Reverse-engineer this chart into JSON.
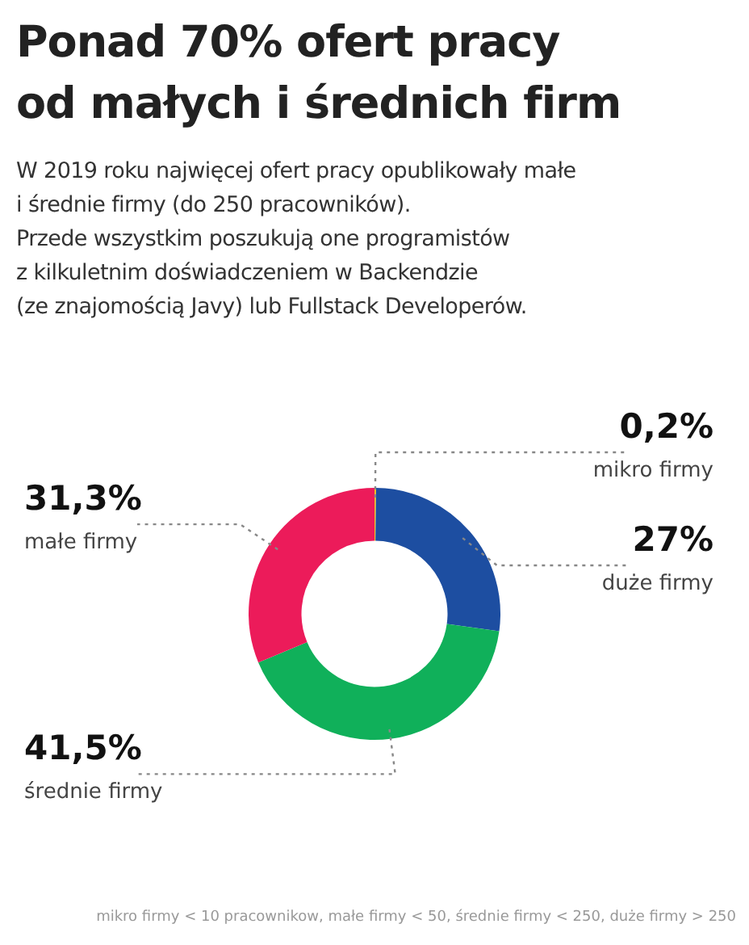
{
  "chart_data": {
    "type": "donut",
    "title": "Ponad 70% ofert pracy\nod małych i średnich firm",
    "subtitle": "W 2019 roku najwięcej ofert pracy opublikowały małe\ni średnie firmy (do 250 pracowników).\nPrzede wszystkim poszukują one programistów\nz kilkuletnim doświadczeniem w Backendzie\n(ze znajomością Javy) lub Fullstack Developerów.",
    "categories": [
      "mikro firmy",
      "duże firmy",
      "średnie firmy",
      "małe firmy"
    ],
    "values": [
      0.2,
      27,
      41.5,
      31.3
    ],
    "colors": [
      "#f2c21b",
      "#1d4ea1",
      "#10b05a",
      "#ec1b5a"
    ],
    "value_labels": [
      "0,2%",
      "27%",
      "41,5%",
      "31,3%"
    ],
    "annotations": [
      "mikro firmy < 10 pracownikow, małe firmy < 50, średnie firmy < 250, duże firmy > 250"
    ]
  }
}
